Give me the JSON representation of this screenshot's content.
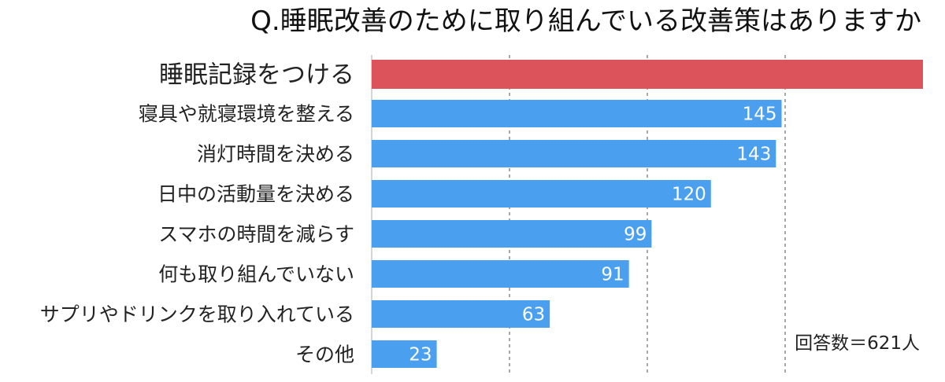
{
  "chart_data": {
    "type": "bar",
    "orientation": "horizontal",
    "title": "Q.睡眠改善のために取り組んでいる改善策はありますか",
    "categories": [
      "睡眠記録をつける",
      "寝具や就寝環境を整える",
      "消灯時間を決める",
      "日中の活動量を決める",
      "スマホの時間を減らす",
      "何も取り組んでいない",
      "サプリやドリンクを取り入れている",
      "その他"
    ],
    "values": [
      195,
      145,
      143,
      120,
      99,
      91,
      63,
      23
    ],
    "value_labels": [
      "",
      "145",
      "143",
      "120",
      "99",
      "91",
      "63",
      "23"
    ],
    "highlight_index": 0,
    "xlim": [
      0,
      195
    ],
    "grid": true,
    "grid_style": "dashed-vertical",
    "note": "回答数＝621人"
  },
  "colors": {
    "highlight": "#dc535c",
    "bar": "#4aa0ee",
    "grid": "#a8a8a8",
    "text": "#222222"
  }
}
